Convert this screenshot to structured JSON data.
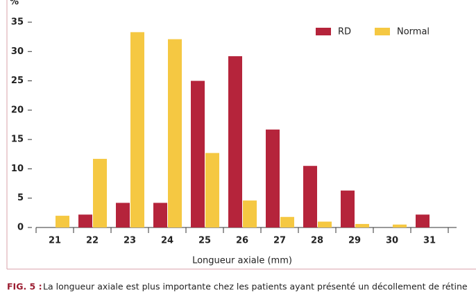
{
  "chart_data": {
    "type": "bar",
    "y_label": "%",
    "x_label": "Longueur axiale (mm)",
    "categories": [
      "21",
      "22",
      "23",
      "24",
      "25",
      "26",
      "27",
      "28",
      "29",
      "30",
      "31"
    ],
    "series": [
      {
        "name": "RD",
        "color": "#b5243b",
        "values": [
          0,
          2.2,
          4.2,
          4.2,
          25,
          29.2,
          16.7,
          10.5,
          6.3,
          0,
          2.2
        ]
      },
      {
        "name": "Normal",
        "color": "#f5c842",
        "values": [
          2,
          11.7,
          33.3,
          32.1,
          12.7,
          4.6,
          1.8,
          1.0,
          0.6,
          0.5,
          0
        ]
      }
    ],
    "ylim": [
      0,
      35
    ],
    "yticks": [
      0,
      5,
      10,
      15,
      20,
      25,
      30,
      35
    ],
    "legend": "top-right"
  },
  "caption": {
    "label": "FIG. 5 :",
    "text": "La longueur axiale est plus importante chez les patients ayant présenté un décollement de rétine"
  }
}
